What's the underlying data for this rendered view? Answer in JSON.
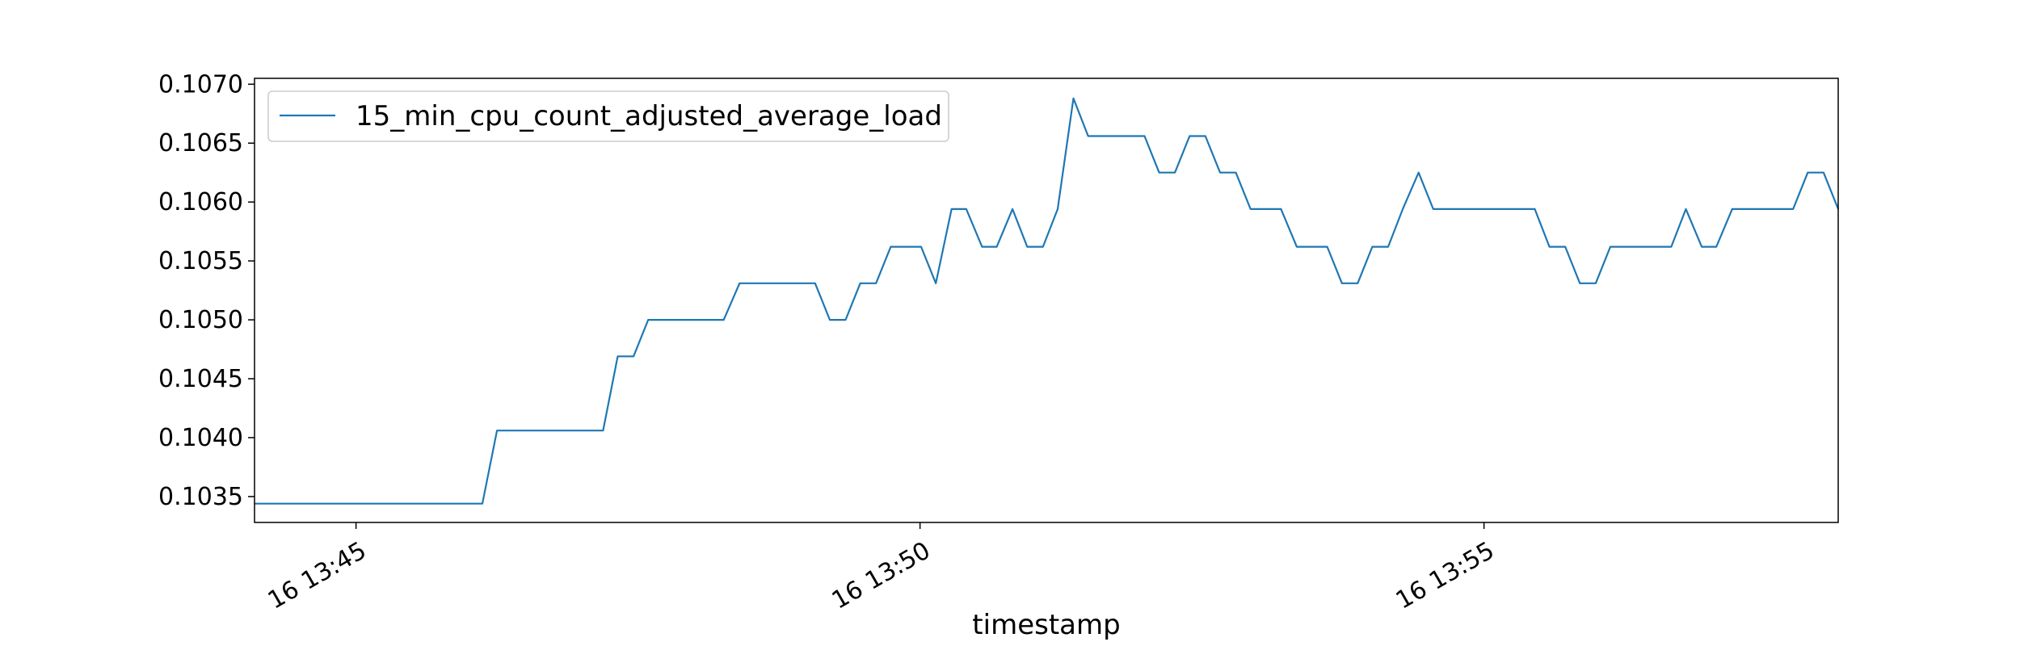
{
  "chart_data": {
    "type": "line",
    "title": "",
    "xlabel": "timestamp",
    "ylabel": "",
    "x_ticks": [
      "16 13:45",
      "16 13:50",
      "16 13:55"
    ],
    "x_tick_values": [
      45,
      50,
      55
    ],
    "y_ticks": [
      "0.1035",
      "0.1040",
      "0.1045",
      "0.1050",
      "0.1055",
      "0.1060",
      "0.1065",
      "0.1070"
    ],
    "xlim": [
      44.1,
      58.14
    ],
    "ylim": [
      0.10328,
      0.10705
    ],
    "grid": false,
    "legend_position": "top-left",
    "colors": {
      "series": "#1f77b4"
    },
    "series": [
      {
        "name": "15_min_cpu_count_adjusted_average_load",
        "points": [
          [
            44.1,
            0.10344
          ],
          [
            46.12,
            0.10344
          ],
          [
            46.25,
            0.10406
          ],
          [
            47.19,
            0.10406
          ],
          [
            47.32,
            0.10469
          ],
          [
            47.46,
            0.10469
          ],
          [
            47.59,
            0.105
          ],
          [
            48.26,
            0.105
          ],
          [
            48.4,
            0.10531
          ],
          [
            49.07,
            0.10531
          ],
          [
            49.2,
            0.105
          ],
          [
            49.34,
            0.105
          ],
          [
            49.47,
            0.10531
          ],
          [
            49.61,
            0.10531
          ],
          [
            49.74,
            0.10562
          ],
          [
            50.01,
            0.10562
          ],
          [
            50.14,
            0.10531
          ],
          [
            50.28,
            0.10594
          ],
          [
            50.41,
            0.10594
          ],
          [
            50.55,
            0.10562
          ],
          [
            50.68,
            0.10562
          ],
          [
            50.82,
            0.10594
          ],
          [
            50.95,
            0.10562
          ],
          [
            51.09,
            0.10562
          ],
          [
            51.22,
            0.10594
          ],
          [
            51.36,
            0.10688
          ],
          [
            51.49,
            0.10656
          ],
          [
            51.99,
            0.10656
          ],
          [
            52.12,
            0.10625
          ],
          [
            52.26,
            0.10625
          ],
          [
            52.39,
            0.10656
          ],
          [
            52.53,
            0.10656
          ],
          [
            52.66,
            0.10625
          ],
          [
            52.8,
            0.10625
          ],
          [
            52.93,
            0.10594
          ],
          [
            53.2,
            0.10594
          ],
          [
            53.34,
            0.10562
          ],
          [
            53.61,
            0.10562
          ],
          [
            53.74,
            0.10531
          ],
          [
            53.88,
            0.10531
          ],
          [
            54.01,
            0.10562
          ],
          [
            54.15,
            0.10562
          ],
          [
            54.28,
            0.10594
          ],
          [
            54.42,
            0.10625
          ],
          [
            54.55,
            0.10594
          ],
          [
            55.45,
            0.10594
          ],
          [
            55.58,
            0.10562
          ],
          [
            55.72,
            0.10562
          ],
          [
            55.85,
            0.10531
          ],
          [
            55.99,
            0.10531
          ],
          [
            56.12,
            0.10562
          ],
          [
            56.66,
            0.10562
          ],
          [
            56.79,
            0.10594
          ],
          [
            56.93,
            0.10562
          ],
          [
            57.06,
            0.10562
          ],
          [
            57.2,
            0.10594
          ],
          [
            57.74,
            0.10594
          ],
          [
            57.87,
            0.10625
          ],
          [
            58.01,
            0.10625
          ],
          [
            58.14,
            0.10594
          ]
        ]
      }
    ]
  }
}
